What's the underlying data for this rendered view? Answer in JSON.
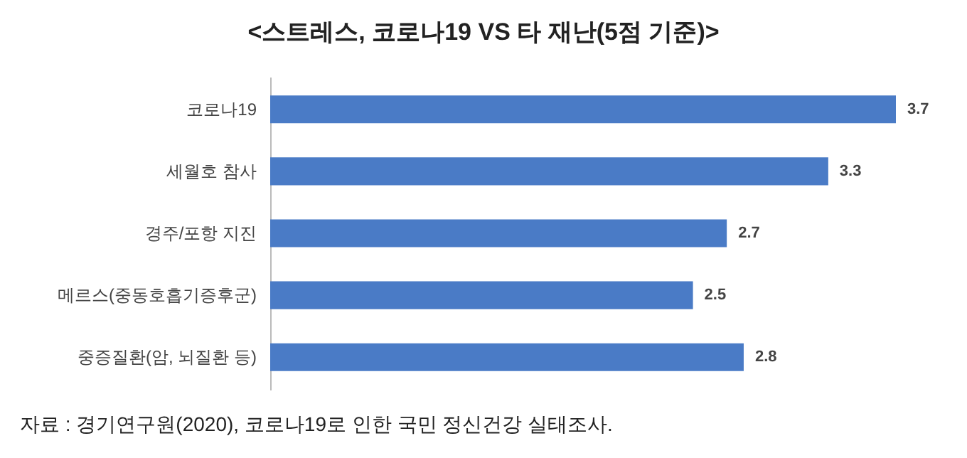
{
  "chart_data": {
    "type": "bar",
    "orientation": "horizontal",
    "title": "<스트레스, 코로나19 VS 타 재난(5점 기준)>",
    "categories": [
      "코로나19",
      "세월호 참사",
      "경주/포항 지진",
      "메르스(중동호흡기증후군)",
      "중증질환(암, 뇌질환 등)"
    ],
    "values": [
      3.7,
      3.3,
      2.7,
      2.5,
      2.8
    ],
    "color": "#4a7bc6",
    "data_labels": true,
    "annotations": [
      "자료 : 경기연구원(2020), 코로나19로 인한 국민 정신건강 실태조사."
    ]
  }
}
